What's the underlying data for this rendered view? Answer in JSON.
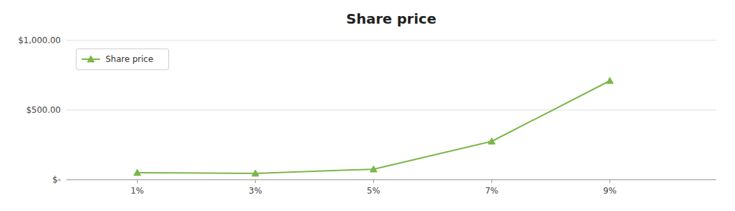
{
  "chart_data": {
    "type": "line",
    "title": "Share price",
    "x": [
      1,
      3,
      5,
      7,
      9
    ],
    "xlim": [
      -0.2,
      10.8
    ],
    "xticks": [
      {
        "value": 1,
        "label": "1%"
      },
      {
        "value": 3,
        "label": "3%"
      },
      {
        "value": 5,
        "label": "5%"
      },
      {
        "value": 7,
        "label": "7%"
      },
      {
        "value": 9,
        "label": "9%"
      }
    ],
    "ylim": [
      0,
      1000
    ],
    "yticks": [
      {
        "value": 0,
        "label": "$-"
      },
      {
        "value": 500,
        "label": "$500.00"
      },
      {
        "value": 1000,
        "label": "$1,000.00"
      }
    ],
    "series": [
      {
        "name": "Share price",
        "color": "#7ab648",
        "marker": "triangle",
        "values": [
          50,
          45,
          75,
          275,
          710
        ]
      }
    ],
    "grid": true,
    "legend": "upper left"
  }
}
